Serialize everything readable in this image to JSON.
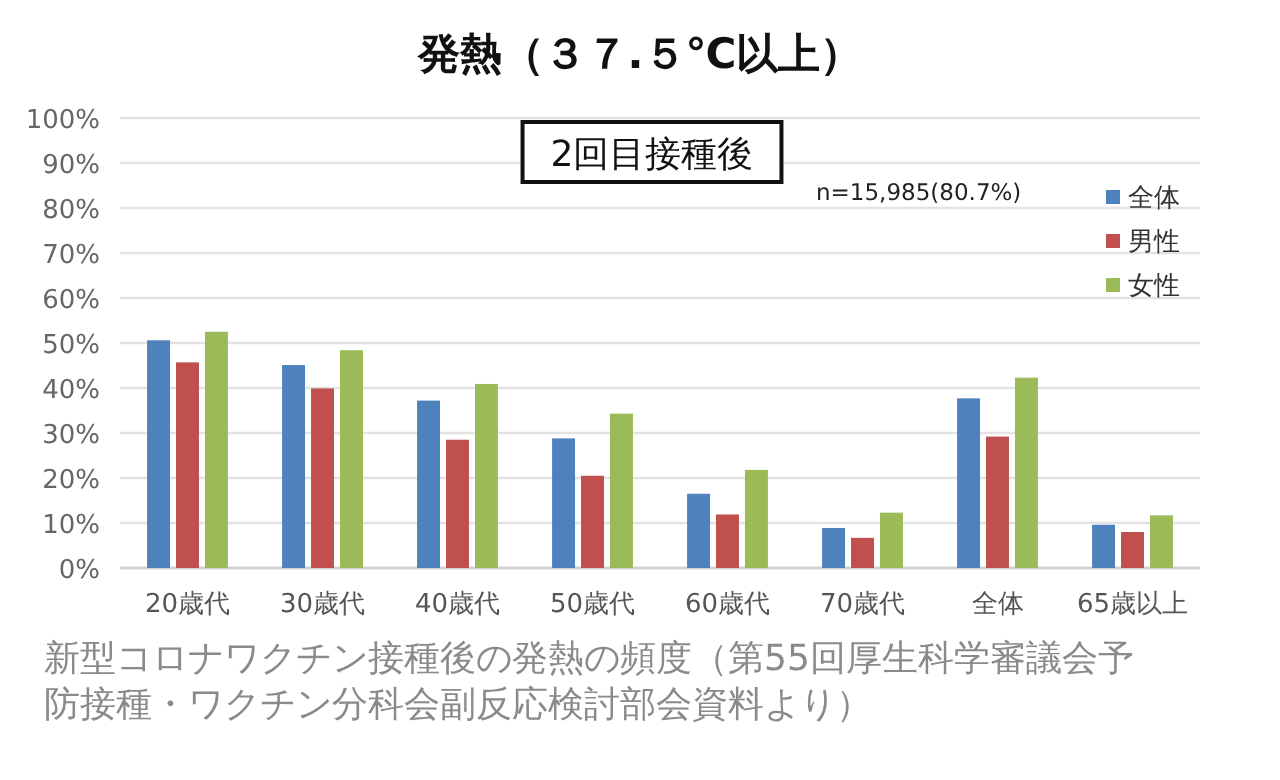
{
  "chart_data": {
    "type": "bar",
    "title": "発熱（３７.５℃以上）",
    "categories": [
      "20歳代",
      "30歳代",
      "40歳代",
      "50歳代",
      "60歳代",
      "70歳代",
      "全体",
      "65歳以上"
    ],
    "series": [
      {
        "name": "全体",
        "color": "#4f81bd",
        "values": [
          50.6,
          45.1,
          37.2,
          28.8,
          16.5,
          8.9,
          37.7,
          9.6
        ]
      },
      {
        "name": "男性",
        "color": "#c0504d",
        "values": [
          45.7,
          39.9,
          28.5,
          20.5,
          11.9,
          6.7,
          29.2,
          8.0
        ]
      },
      {
        "name": "女性",
        "color": "#9bbb59",
        "values": [
          52.5,
          48.4,
          40.9,
          34.3,
          21.8,
          12.3,
          42.3,
          11.7
        ]
      }
    ],
    "ylim": [
      0,
      100
    ],
    "yticks": [
      {
        "value": 0,
        "label": "0%"
      },
      {
        "value": 10,
        "label": "10%"
      },
      {
        "value": 20,
        "label": "20%"
      },
      {
        "value": 30,
        "label": "30%"
      },
      {
        "value": 40,
        "label": "40%"
      },
      {
        "value": 50,
        "label": "50%"
      },
      {
        "value": 60,
        "label": "60%"
      },
      {
        "value": 70,
        "label": "70%"
      },
      {
        "value": 80,
        "label": "80%"
      },
      {
        "value": 90,
        "label": "90%"
      },
      {
        "value": 100,
        "label": "100%"
      }
    ],
    "grid": "y",
    "legend": "top right",
    "annotations": [
      "2回目接種後",
      "n=15,985(80.7%)",
      "新型コロナワクチン接種後の発熱の頻度（第55回厚生科学審議会予防接種・ワクチン分科会副反応検討部会資料より）"
    ]
  }
}
